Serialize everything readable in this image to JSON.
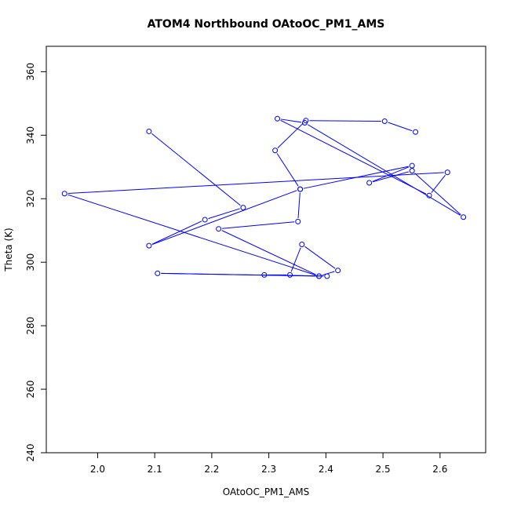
{
  "chart_data": {
    "type": "line",
    "title": "ATOM4 Northbound OAtoOC_PM1_AMS",
    "xlabel": "OAtoOC_PM1_AMS",
    "ylabel": "Theta (K)",
    "xlim": [
      1.91,
      2.68
    ],
    "ylim": [
      240,
      368
    ],
    "xticks": [
      2.0,
      2.1,
      2.2,
      2.3,
      2.4,
      2.5,
      2.6
    ],
    "xtick_labels": [
      "2.0",
      "2.1",
      "2.2",
      "2.3",
      "2.4",
      "2.5",
      "2.6"
    ],
    "yticks": [
      240,
      260,
      280,
      300,
      320,
      340,
      360
    ],
    "ytick_labels": [
      "240",
      "260",
      "280",
      "300",
      "320",
      "340",
      "360"
    ],
    "grid": false,
    "legend": "none",
    "series": [
      {
        "color": "#0000ff",
        "marker": "open-circle",
        "x": [
          2.557,
          2.503,
          2.365,
          2.311,
          2.355,
          2.551,
          2.476,
          2.551,
          2.641,
          2.363,
          2.315,
          2.581,
          2.613,
          1.942,
          2.388,
          2.105,
          2.402,
          2.292,
          2.337,
          2.358,
          2.421,
          2.388,
          2.212,
          2.351,
          2.355,
          2.09,
          2.188,
          2.255,
          2.09
        ],
        "y": [
          341.0,
          344.4,
          344.6,
          335.2,
          323.0,
          330.4,
          325.0,
          328.8,
          314.2,
          343.9,
          345.2,
          321.0,
          328.3,
          321.6,
          295.6,
          296.5,
          295.6,
          296.0,
          296.0,
          305.6,
          297.4,
          295.6,
          310.5,
          312.8,
          323.0,
          305.2,
          313.4,
          317.2,
          341.2
        ]
      }
    ]
  }
}
